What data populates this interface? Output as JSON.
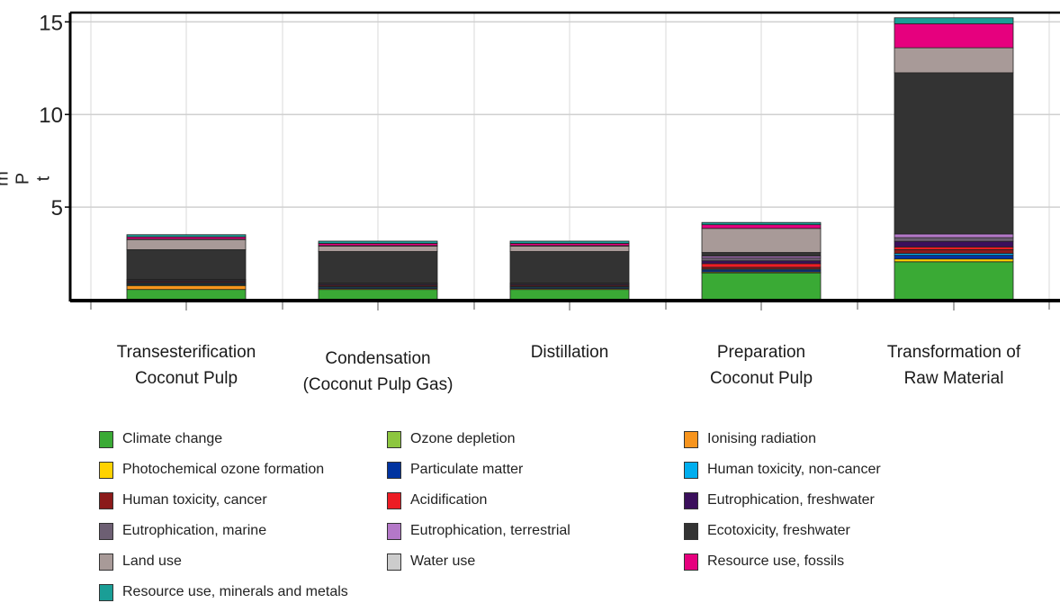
{
  "chart_data": {
    "type": "bar",
    "stacked": true,
    "ylabel": "m P t",
    "ylim": [
      0,
      15.5
    ],
    "yticks": [
      5,
      10,
      15
    ],
    "grid": true,
    "legend_placement": "bottom",
    "categories": [
      "Transesterification\nCoconut Pulp",
      "Condensation\n(Coconut Pulp Gas)",
      "Distillation",
      "Preparation\nCoconut Pulp",
      "Transformation of\nRaw Material"
    ],
    "series": [
      {
        "name": "Climate change",
        "color": "#3aaa35",
        "values": [
          0.55,
          0.55,
          0.55,
          1.45,
          2.05
        ]
      },
      {
        "name": "Ozone depletion",
        "color": "#8dc63f",
        "values": [
          0.0,
          0.0,
          0.0,
          0.0,
          0.0
        ]
      },
      {
        "name": "Ionising radiation",
        "color": "#f7941d",
        "values": [
          0.2,
          0.0,
          0.0,
          0.0,
          0.0
        ]
      },
      {
        "name": "Photochemical ozone formation",
        "color": "#ffd200",
        "values": [
          0.05,
          0.05,
          0.05,
          0.05,
          0.15
        ]
      },
      {
        "name": "Particulate matter",
        "color": "#0033a0",
        "values": [
          0.05,
          0.05,
          0.05,
          0.1,
          0.2
        ]
      },
      {
        "name": "Human toxicity, non-cancer",
        "color": "#00aeef",
        "values": [
          0.05,
          0.05,
          0.05,
          0.05,
          0.1
        ]
      },
      {
        "name": "Human toxicity, cancer",
        "color": "#8b1a1a",
        "values": [
          0.02,
          0.02,
          0.02,
          0.1,
          0.2
        ]
      },
      {
        "name": "Acidification",
        "color": "#ed1c24",
        "values": [
          0.05,
          0.05,
          0.05,
          0.2,
          0.15
        ]
      },
      {
        "name": "Eutrophication, freshwater",
        "color": "#3b0f5c",
        "values": [
          0.05,
          0.05,
          0.05,
          0.15,
          0.3
        ]
      },
      {
        "name": "Eutrophication, marine",
        "color": "#6d5f73",
        "values": [
          0.05,
          0.05,
          0.05,
          0.15,
          0.2
        ]
      },
      {
        "name": "Eutrophication, terrestrial",
        "color": "#b478c8",
        "values": [
          0.03,
          0.03,
          0.03,
          0.1,
          0.2
        ]
      },
      {
        "name": "Ecotoxicity, freshwater",
        "color": "#333333",
        "values": [
          1.6,
          1.7,
          1.7,
          0.2,
          8.7
        ]
      },
      {
        "name": "Land use",
        "color": "#a89a98",
        "values": [
          0.55,
          0.3,
          0.3,
          1.3,
          1.35
        ]
      },
      {
        "name": "Water use",
        "color": "#cccccc",
        "values": [
          0.02,
          0.02,
          0.02,
          0.0,
          0.0
        ]
      },
      {
        "name": "Resource use, fossils",
        "color": "#e6007e",
        "values": [
          0.12,
          0.12,
          0.12,
          0.2,
          1.3
        ]
      },
      {
        "name": "Resource use, minerals and metals",
        "color": "#1a9e96",
        "values": [
          0.12,
          0.12,
          0.12,
          0.12,
          0.32
        ]
      }
    ]
  }
}
